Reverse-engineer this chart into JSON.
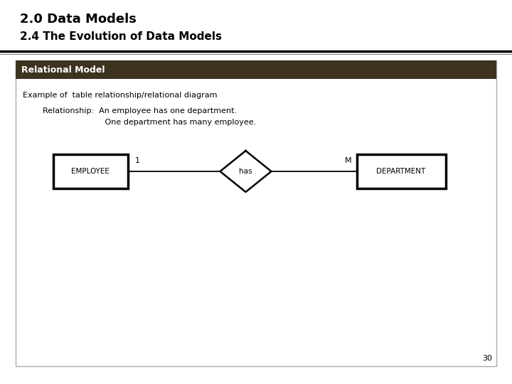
{
  "title_line1": "2.0 Data Models",
  "title_line2": "2.4 The Evolution of Data Models",
  "section_header": "Relational Model",
  "section_header_bg": "#3d3320",
  "section_header_text_color": "#ffffff",
  "example_text": "Example of  table relationship/relational diagram",
  "relationship_line1": "Relationship:  An employee has one department.",
  "relationship_line2": "                         One department has many employee.",
  "employee_label": "EMPLOYEE",
  "has_label": "has",
  "department_label": "DEPARTMENT",
  "card_left": "1",
  "card_right": "M",
  "page_number": "30",
  "bg_color": "#ffffff",
  "box_color": "#000000",
  "title1_fontsize": 13,
  "title2_fontsize": 11,
  "header_fontsize": 9,
  "body_fontsize": 8,
  "entity_fontsize": 7.5,
  "rel_fontsize": 7.5,
  "card_fontsize": 8
}
